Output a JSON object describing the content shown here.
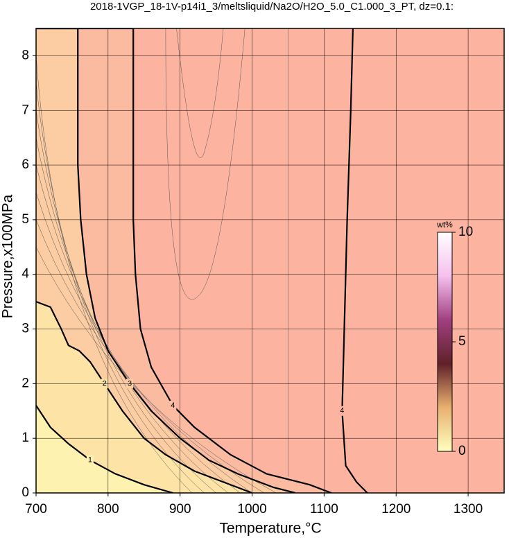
{
  "chart_data": {
    "type": "contour",
    "title": "2018-1VGP_18-1V-p14i1_3/meltsliquid/Na2O/H2O_5.0_C1.000_3_PT, dz=0.1:",
    "x_label": "Temperature,°C",
    "y_label": "Pressure,x100MPa",
    "xlim": [
      700,
      1350
    ],
    "ylim": [
      0,
      8.5
    ],
    "xticks": [
      700,
      800,
      900,
      1000,
      1100,
      1200,
      1300
    ],
    "yticks": [
      0,
      1,
      2,
      3,
      4,
      5,
      6,
      7,
      8
    ],
    "grid": true,
    "contours": [
      {
        "level": 1,
        "x": [
          700,
          720,
          745,
          775,
          810,
          850,
          890
        ],
        "y": [
          1.6,
          1.2,
          0.9,
          0.6,
          0.35,
          0.15,
          0
        ],
        "fill": "#fdf2b0"
      },
      {
        "level": 2,
        "x": [
          700,
          720,
          735,
          745,
          760,
          775,
          795,
          820,
          850,
          880,
          920,
          960,
          1000
        ],
        "y": [
          3.5,
          3.4,
          3.0,
          2.7,
          2.6,
          2.4,
          2.0,
          1.5,
          1.0,
          0.7,
          0.4,
          0.2,
          0
        ],
        "fill": "#fde3a6"
      },
      {
        "level": 3,
        "x": [
          700,
          758,
          758,
          762,
          770,
          782,
          800,
          830,
          860,
          900,
          940,
          980,
          1030,
          1060
        ],
        "y": [
          8.5,
          8.5,
          6,
          5,
          4,
          3.2,
          2.6,
          2.0,
          1.5,
          1.0,
          0.6,
          0.35,
          0.1,
          0
        ],
        "fill": "#fccca2"
      },
      {
        "level": 4,
        "x": [
          700,
          835,
          835,
          838,
          845,
          860,
          890,
          920,
          970,
          1020,
          1080,
          1110
        ],
        "y": [
          8.5,
          8.5,
          5,
          4,
          3,
          2.3,
          1.6,
          1.2,
          0.7,
          0.35,
          0.15,
          0
        ],
        "fill": "#fbbba0"
      },
      {
        "level": 4,
        "x": [
          1140,
          1137,
          1132,
          1128,
          1125,
          1130,
          1145,
          1160
        ],
        "y": [
          8.5,
          7,
          5,
          3,
          1.5,
          0.5,
          0.2,
          0
        ],
        "fill": null
      }
    ],
    "background": "#fcb3a0",
    "colorbar": {
      "label": "wt%",
      "lim": [
        0,
        10
      ],
      "ticks": [
        0,
        5,
        10
      ],
      "colors": [
        "#ffffc0",
        "#e8b070",
        "#602028",
        "#a04080",
        "#f6c0ee",
        "#ffffff"
      ]
    }
  }
}
